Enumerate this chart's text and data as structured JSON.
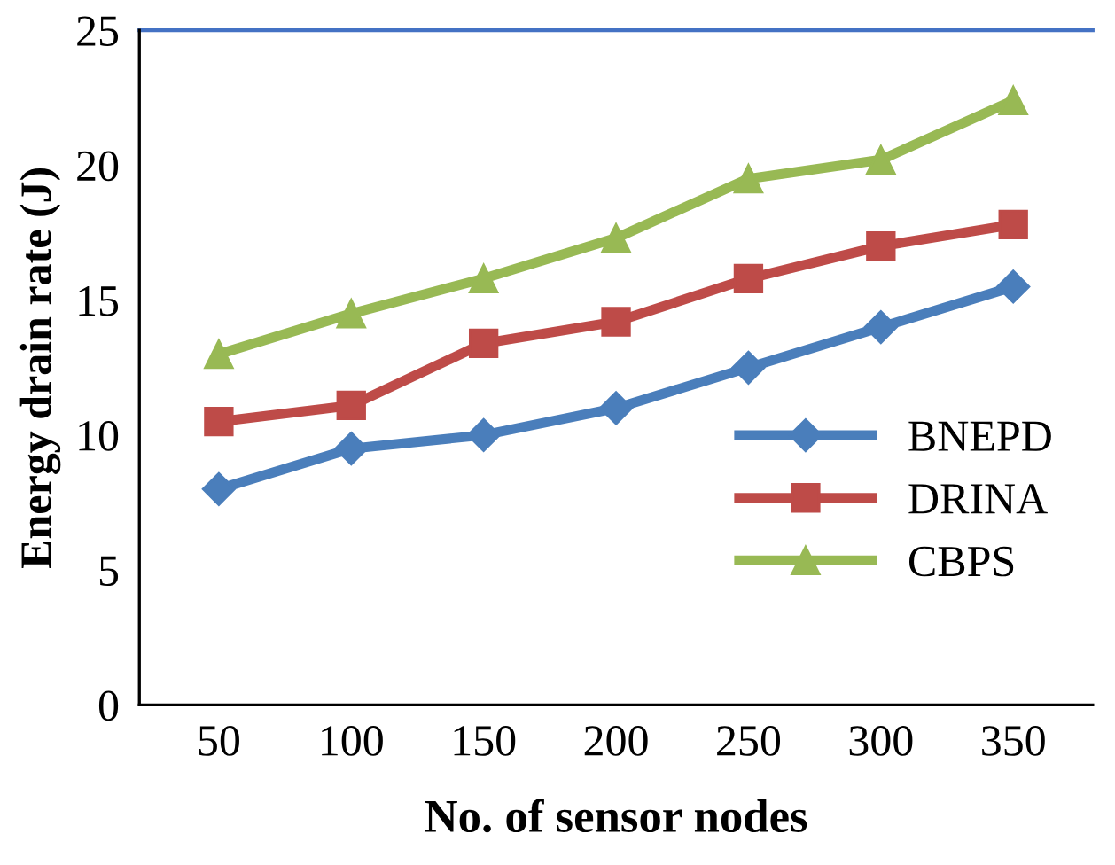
{
  "chart_data": {
    "type": "line",
    "xlabel": "No. of sensor nodes",
    "ylabel": "Energy drain rate (J)",
    "categories": [
      "50",
      "100",
      "150",
      "200",
      "250",
      "300",
      "350"
    ],
    "series": [
      {
        "name": "BNEPD",
        "color": "#4a7ebb",
        "marker": "diamond",
        "values": [
          8,
          9.5,
          10,
          11,
          12.5,
          14,
          15.5
        ]
      },
      {
        "name": "DRINA",
        "color": "#be4b48",
        "marker": "square",
        "values": [
          10.5,
          11.1,
          13.4,
          14.2,
          15.8,
          17,
          17.8
        ]
      },
      {
        "name": "CBPS",
        "color": "#98b954",
        "marker": "triangle",
        "values": [
          13,
          14.5,
          15.8,
          17.3,
          19.5,
          20.2,
          22.4
        ]
      }
    ],
    "ylim": [
      0,
      25
    ],
    "yticks": [
      0,
      5,
      10,
      15,
      20,
      25
    ],
    "ref_lines": [
      {
        "axis": "y",
        "value": 25,
        "color": "#4472c4"
      }
    ],
    "grid": false,
    "legend": "right",
    "line_style": "solid"
  }
}
